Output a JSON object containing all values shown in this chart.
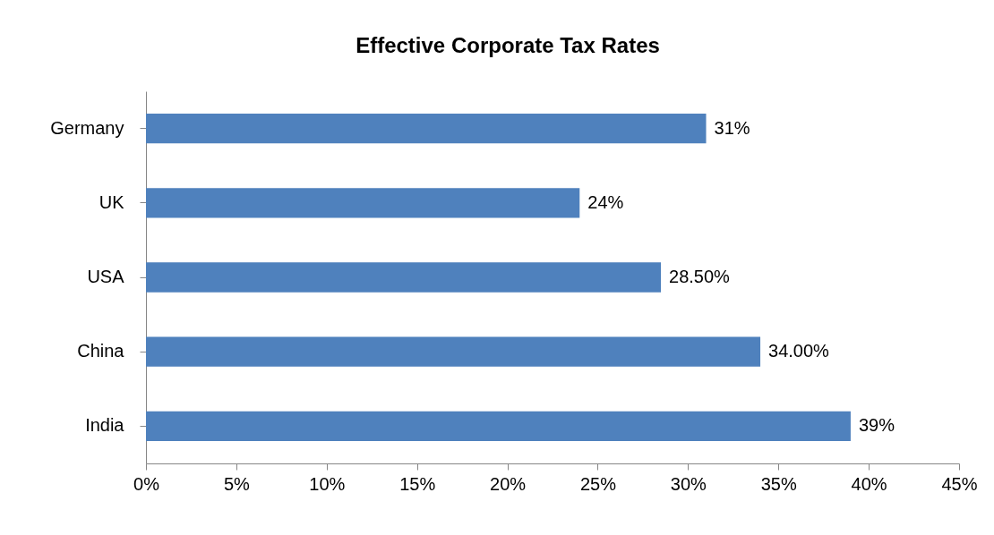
{
  "chart_data": {
    "type": "bar",
    "orientation": "horizontal",
    "title": "Effective Corporate Tax Rates",
    "categories": [
      "Germany",
      "UK",
      "USA",
      "China",
      "India"
    ],
    "values": [
      31,
      24,
      28.5,
      34,
      39
    ],
    "value_labels": [
      "31%",
      "24%",
      "28.50%",
      "34.00%",
      "39%"
    ],
    "color": "#4f81bd",
    "xlim": [
      0,
      45
    ],
    "xticks": [
      {
        "value": 0,
        "label": "0%"
      },
      {
        "value": 5,
        "label": "5%"
      },
      {
        "value": 10,
        "label": "10%"
      },
      {
        "value": 15,
        "label": "15%"
      },
      {
        "value": 20,
        "label": "20%"
      },
      {
        "value": 25,
        "label": "25%"
      },
      {
        "value": 30,
        "label": "30%"
      },
      {
        "value": 35,
        "label": "35%"
      },
      {
        "value": 40,
        "label": "40%"
      },
      {
        "value": 45,
        "label": "45%"
      }
    ],
    "grid": false
  }
}
